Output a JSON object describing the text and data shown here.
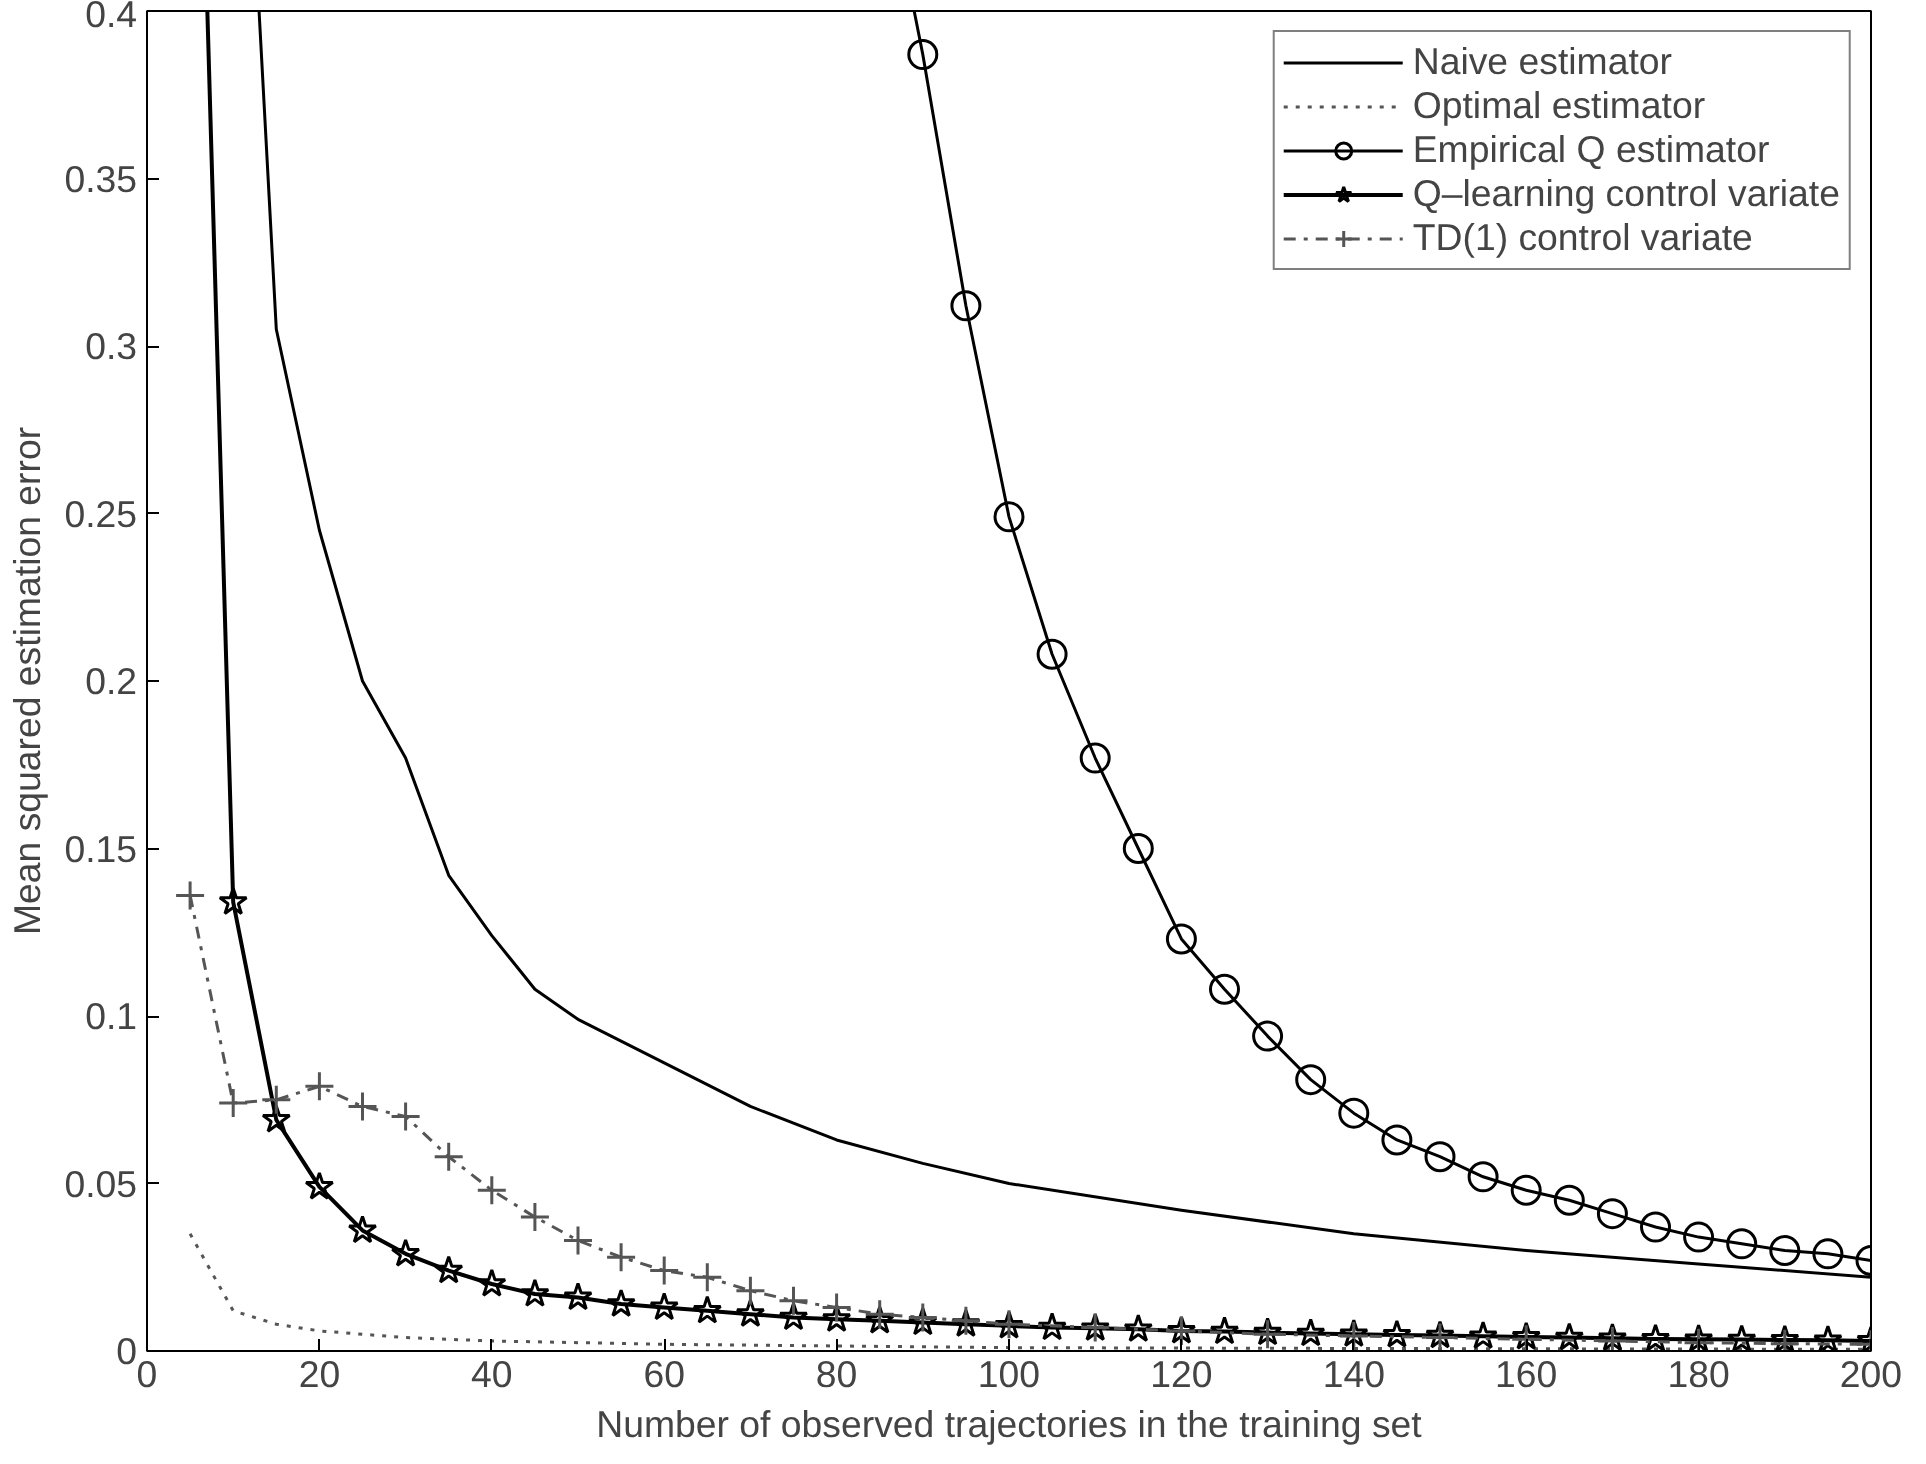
{
  "chart_data": {
    "type": "line",
    "xlabel": "Number of observed trajectories in the training set",
    "ylabel": "Mean squared estimation error",
    "xlim": [
      0,
      200
    ],
    "ylim": [
      0,
      0.4
    ],
    "xticks": [
      0,
      20,
      40,
      60,
      80,
      100,
      120,
      140,
      160,
      180,
      200
    ],
    "yticks": [
      0,
      0.05,
      0.1,
      0.15,
      0.2,
      0.25,
      0.3,
      0.35,
      0.4
    ],
    "grid": false,
    "legend": "top right",
    "series": [
      {
        "name": "Naive estimator",
        "color": "#000000",
        "marker": "none",
        "line_style": "solid",
        "x": [
          13,
          15,
          20,
          25,
          30,
          35,
          40,
          45,
          50,
          60,
          70,
          80,
          90,
          100,
          120,
          140,
          160,
          180,
          200
        ],
        "values": [
          0.4,
          0.305,
          0.245,
          0.2,
          0.177,
          0.142,
          0.124,
          0.108,
          0.099,
          0.086,
          0.073,
          0.063,
          0.056,
          0.05,
          0.042,
          0.035,
          0.03,
          0.026,
          0.022
        ]
      },
      {
        "name": "Optimal estimator",
        "color": "#555555",
        "marker": "none",
        "line_style": "dotted",
        "x": [
          5,
          10,
          15,
          20,
          30,
          40,
          60,
          80,
          100,
          150,
          200
        ],
        "values": [
          0.035,
          0.012,
          0.008,
          0.006,
          0.004,
          0.003,
          0.002,
          0.0015,
          0.001,
          0.0007,
          0.0005
        ]
      },
      {
        "name": "Empirical Q estimator",
        "color": "#000000",
        "marker": "circle",
        "line_style": "solid",
        "x": [
          89,
          90,
          95,
          100,
          105,
          110,
          115,
          120,
          125,
          130,
          135,
          140,
          145,
          150,
          155,
          160,
          165,
          170,
          175,
          180,
          185,
          190,
          195,
          200
        ],
        "values": [
          0.4,
          0.387,
          0.312,
          0.249,
          0.208,
          0.177,
          0.15,
          0.123,
          0.108,
          0.094,
          0.081,
          0.071,
          0.063,
          0.058,
          0.052,
          0.048,
          0.045,
          0.041,
          0.037,
          0.034,
          0.032,
          0.03,
          0.029,
          0.027
        ]
      },
      {
        "name": "Q–learning control variate",
        "color": "#000000",
        "marker": "star",
        "line_style": "solid",
        "x": [
          7,
          10,
          15,
          20,
          25,
          30,
          35,
          40,
          45,
          50,
          55,
          60,
          65,
          70,
          75,
          80,
          85,
          90,
          95,
          100,
          105,
          110,
          115,
          120,
          125,
          130,
          135,
          140,
          145,
          150,
          155,
          160,
          165,
          170,
          175,
          180,
          185,
          190,
          195,
          200
        ],
        "values": [
          0.4,
          0.134,
          0.069,
          0.049,
          0.036,
          0.029,
          0.024,
          0.02,
          0.017,
          0.016,
          0.014,
          0.013,
          0.012,
          0.011,
          0.01,
          0.0095,
          0.009,
          0.0085,
          0.008,
          0.0075,
          0.007,
          0.0068,
          0.0065,
          0.006,
          0.0058,
          0.0055,
          0.0052,
          0.005,
          0.0048,
          0.0046,
          0.0044,
          0.0042,
          0.004,
          0.0038,
          0.0036,
          0.0035,
          0.0034,
          0.0033,
          0.0032,
          0.003
        ]
      },
      {
        "name": "TD(1) control variate",
        "color": "#555555",
        "marker": "cross",
        "line_style": "dashed",
        "x": [
          5,
          10,
          15,
          20,
          25,
          30,
          35,
          40,
          45,
          50,
          55,
          60,
          65,
          70,
          75,
          80,
          85,
          90,
          95,
          100,
          110,
          120,
          130,
          140,
          150,
          160,
          170,
          180,
          190,
          200
        ],
        "values": [
          0.136,
          0.074,
          0.075,
          0.079,
          0.073,
          0.07,
          0.058,
          0.048,
          0.04,
          0.033,
          0.028,
          0.024,
          0.022,
          0.018,
          0.015,
          0.013,
          0.011,
          0.01,
          0.009,
          0.008,
          0.007,
          0.006,
          0.005,
          0.0045,
          0.004,
          0.0035,
          0.003,
          0.0025,
          0.0022,
          0.002
        ]
      }
    ]
  }
}
